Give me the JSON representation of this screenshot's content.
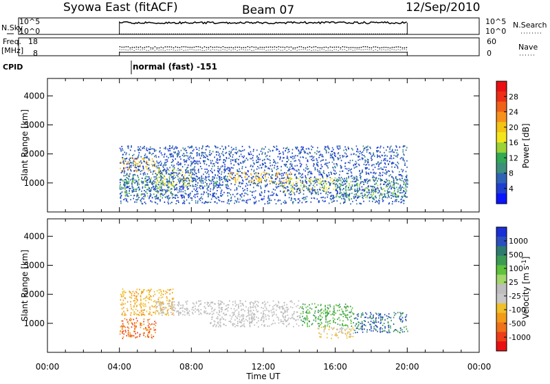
{
  "header": {
    "station": "Syowa East (fitACF)",
    "beam": "Beam 07",
    "date": "12/Sep/2010"
  },
  "nsky_panel": {
    "label_left": "N.Sky",
    "label_right": "N.Search",
    "left_ticks": [
      "10^5",
      "10^0"
    ],
    "right_ticks": [
      "10^5",
      "10^0"
    ]
  },
  "freq_panel": {
    "label_left_line1": "Freq.",
    "label_left_line2": "[MHz]",
    "label_right": "Nave",
    "left_ticks": [
      "18",
      "8"
    ],
    "right_ticks": [
      "60",
      "0"
    ]
  },
  "cpid_panel": {
    "label": "CPID",
    "mode_text": "normal (fast) -151"
  },
  "time_axis": {
    "title": "Time UT",
    "ticks": [
      "00:00",
      "04:00",
      "08:00",
      "12:00",
      "16:00",
      "20:00",
      "00:00"
    ]
  },
  "power_panel": {
    "ylabel": "Slant Range [km]",
    "yticks": [
      "1000",
      "2000",
      "3000",
      "4000"
    ],
    "colorbar_title": "Power [dB]",
    "colorbar_labels": [
      "4",
      "8",
      "12",
      "16",
      "20",
      "24",
      "28"
    ],
    "colorbar_colors": [
      "#0a14ff",
      "#1f3fd0",
      "#2f63b5",
      "#3d8f7c",
      "#31a955",
      "#9bd235",
      "#f3e51c",
      "#f3c415",
      "#f7911c",
      "#ef6118",
      "#ec2e17",
      "#ea0f12"
    ]
  },
  "velocity_panel": {
    "ylabel": "Slant Range [km]",
    "yticks": [
      "1000",
      "2000",
      "3000",
      "4000"
    ],
    "colorbar_title": "Velocity [m s^-1]",
    "colorbar_labels": [
      "1000",
      "500",
      "100",
      "25",
      "-25",
      "-100",
      "-500",
      "-1000"
    ],
    "colorbar_colors": [
      "#1a2fd6",
      "#2b4fbf",
      "#2f7a6e",
      "#3c9a55",
      "#5fc23b",
      "#a3d66c",
      "#bebebe",
      "#c8c8c8",
      "#f1c02a",
      "#f39a18",
      "#ef7218",
      "#ee3e17",
      "#ea0f12"
    ]
  },
  "chart_data": {
    "type": "heatmap",
    "x_unit": "UT hours",
    "xlim": [
      0,
      24
    ],
    "ylim": [
      0,
      4600
    ],
    "data_window": [
      4.0,
      20.0
    ],
    "power_blobs": [
      {
        "t0": 4.0,
        "t1": 6.0,
        "r0": 1400,
        "r1": 1900,
        "level": 18
      },
      {
        "t0": 4.0,
        "t1": 7.0,
        "r0": 500,
        "r1": 1300,
        "level": 10
      },
      {
        "t0": 6.0,
        "t1": 8.0,
        "r0": 900,
        "r1": 1500,
        "level": 14
      },
      {
        "t0": 8.0,
        "t1": 10.0,
        "r0": 900,
        "r1": 1200,
        "level": 8
      },
      {
        "t0": 10.0,
        "t1": 13.5,
        "r0": 1000,
        "r1": 1400,
        "level": 18
      },
      {
        "t0": 13.0,
        "t1": 16.0,
        "r0": 700,
        "r1": 1200,
        "level": 14
      },
      {
        "t0": 16.0,
        "t1": 20.0,
        "r0": 500,
        "r1": 1200,
        "level": 10
      },
      {
        "t0": 4.0,
        "t1": 20.0,
        "r0": 300,
        "r1": 2300,
        "level": 4
      }
    ],
    "velocity_blobs": [
      {
        "t0": 4.0,
        "t1": 7.0,
        "r0": 1300,
        "r1": 2200,
        "level": -100
      },
      {
        "t0": 4.0,
        "t1": 6.0,
        "r0": 500,
        "r1": 1200,
        "level": -500
      },
      {
        "t0": 6.0,
        "t1": 9.0,
        "r0": 1300,
        "r1": 1800,
        "level": 0
      },
      {
        "t0": 9.0,
        "t1": 14.0,
        "r0": 900,
        "r1": 1800,
        "level": 0
      },
      {
        "t0": 14.0,
        "t1": 17.0,
        "r0": 900,
        "r1": 1700,
        "level": 100
      },
      {
        "t0": 17.0,
        "t1": 20.0,
        "r0": 700,
        "r1": 1400,
        "level": 500
      },
      {
        "t0": 15.0,
        "t1": 17.0,
        "r0": 500,
        "r1": 900,
        "level": -25
      }
    ]
  }
}
